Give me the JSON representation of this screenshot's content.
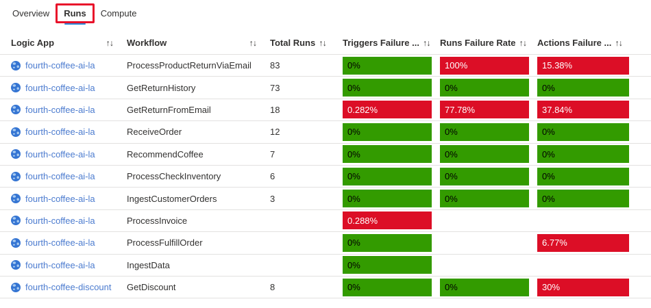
{
  "tabs": [
    {
      "label": "Overview",
      "active": false
    },
    {
      "label": "Runs",
      "active": true,
      "annotated": true
    },
    {
      "label": "Compute",
      "active": false
    }
  ],
  "colors": {
    "good": "#339b00",
    "bad": "#dc0e26",
    "good_text": "#000000",
    "bad_text": "#ffffff",
    "link": "#4b7bcf",
    "icon": "#3575d3",
    "icon_light": "#a8cbf0",
    "tab_underline": "#2b88d8",
    "annotation": "#e8112a"
  },
  "table": {
    "columns": [
      {
        "label": "Logic App",
        "sort_icon": "↑↓"
      },
      {
        "label": "Workflow",
        "sort_icon": "↑↓"
      },
      {
        "label": "Total Runs",
        "sort_icon": "↑↓"
      },
      {
        "label": "Triggers Failure ...",
        "sort_icon": "↑↓"
      },
      {
        "label": "Runs Failure Rate",
        "sort_icon": "↑↓"
      },
      {
        "label": "Actions Failure ...",
        "sort_icon": "↑↓"
      }
    ],
    "rows": [
      {
        "logic_app": "fourth-coffee-ai-la",
        "workflow": "ProcessProductReturnViaEmail",
        "total_runs": "83",
        "triggers_failure": {
          "value": "0%",
          "status": "good"
        },
        "runs_failure": {
          "value": "100%",
          "status": "bad"
        },
        "actions_failure": {
          "value": "15.38%",
          "status": "bad"
        }
      },
      {
        "logic_app": "fourth-coffee-ai-la",
        "workflow": "GetReturnHistory",
        "total_runs": "73",
        "triggers_failure": {
          "value": "0%",
          "status": "good"
        },
        "runs_failure": {
          "value": "0%",
          "status": "good"
        },
        "actions_failure": {
          "value": "0%",
          "status": "good"
        }
      },
      {
        "logic_app": "fourth-coffee-ai-la",
        "workflow": "GetReturnFromEmail",
        "total_runs": "18",
        "triggers_failure": {
          "value": "0.282%",
          "status": "bad"
        },
        "runs_failure": {
          "value": "77.78%",
          "status": "bad"
        },
        "actions_failure": {
          "value": "37.84%",
          "status": "bad"
        }
      },
      {
        "logic_app": "fourth-coffee-ai-la",
        "workflow": "ReceiveOrder",
        "total_runs": "12",
        "triggers_failure": {
          "value": "0%",
          "status": "good"
        },
        "runs_failure": {
          "value": "0%",
          "status": "good"
        },
        "actions_failure": {
          "value": "0%",
          "status": "good"
        }
      },
      {
        "logic_app": "fourth-coffee-ai-la",
        "workflow": "RecommendCoffee",
        "total_runs": "7",
        "triggers_failure": {
          "value": "0%",
          "status": "good"
        },
        "runs_failure": {
          "value": "0%",
          "status": "good"
        },
        "actions_failure": {
          "value": "0%",
          "status": "good"
        }
      },
      {
        "logic_app": "fourth-coffee-ai-la",
        "workflow": "ProcessCheckInventory",
        "total_runs": "6",
        "triggers_failure": {
          "value": "0%",
          "status": "good"
        },
        "runs_failure": {
          "value": "0%",
          "status": "good"
        },
        "actions_failure": {
          "value": "0%",
          "status": "good"
        }
      },
      {
        "logic_app": "fourth-coffee-ai-la",
        "workflow": "IngestCustomerOrders",
        "total_runs": "3",
        "triggers_failure": {
          "value": "0%",
          "status": "good"
        },
        "runs_failure": {
          "value": "0%",
          "status": "good"
        },
        "actions_failure": {
          "value": "0%",
          "status": "good"
        }
      },
      {
        "logic_app": "fourth-coffee-ai-la",
        "workflow": "ProcessInvoice",
        "total_runs": "",
        "triggers_failure": {
          "value": "0.288%",
          "status": "bad"
        },
        "runs_failure": null,
        "actions_failure": null
      },
      {
        "logic_app": "fourth-coffee-ai-la",
        "workflow": "ProcessFulfillOrder",
        "total_runs": "",
        "triggers_failure": {
          "value": "0%",
          "status": "good"
        },
        "runs_failure": null,
        "actions_failure": {
          "value": "6.77%",
          "status": "bad"
        }
      },
      {
        "logic_app": "fourth-coffee-ai-la",
        "workflow": "IngestData",
        "total_runs": "",
        "triggers_failure": {
          "value": "0%",
          "status": "good"
        },
        "runs_failure": null,
        "actions_failure": null
      },
      {
        "logic_app": "fourth-coffee-discount",
        "workflow": "GetDiscount",
        "total_runs": "8",
        "triggers_failure": {
          "value": "0%",
          "status": "good"
        },
        "runs_failure": {
          "value": "0%",
          "status": "good"
        },
        "actions_failure": {
          "value": "30%",
          "status": "bad"
        }
      }
    ]
  }
}
